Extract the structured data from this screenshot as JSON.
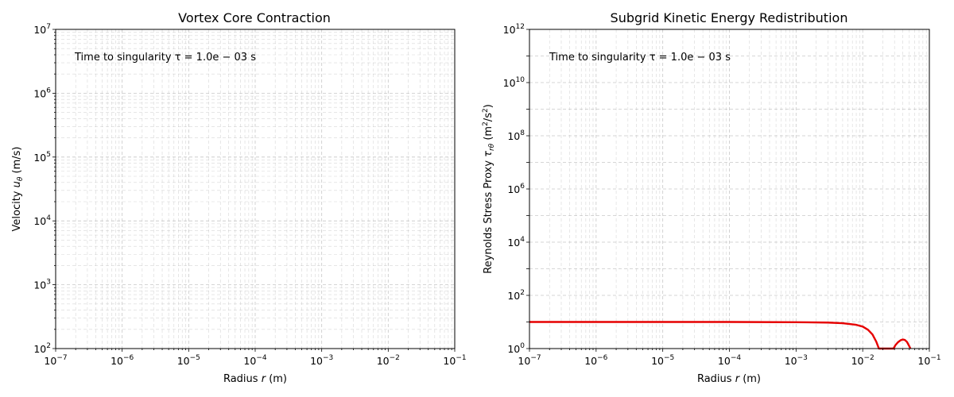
{
  "chart_data": [
    {
      "type": "line",
      "title": "Vortex Core Contraction",
      "xlabel": "Radius r (m)",
      "ylabel": "Velocity uθ (m/s)",
      "xscale": "log",
      "yscale": "log",
      "xlim": [
        1e-07,
        0.1
      ],
      "ylim": [
        100,
        10000000
      ],
      "grid": true,
      "annotation": "Time to singularity τ = 1.0e − 03 s",
      "series": []
    },
    {
      "type": "line",
      "title": "Subgrid Kinetic Energy Redistribution",
      "xlabel": "Radius r (m)",
      "ylabel": "Reynolds Stress Proxy τrθ (m²/s²)",
      "xscale": "log",
      "yscale": "log",
      "xlim": [
        1e-07,
        0.1
      ],
      "ylim": [
        1,
        1000000000000
      ],
      "grid": true,
      "annotation": "Time to singularity τ = 1.0e − 03 s",
      "series": [
        {
          "color": "#e60000",
          "x": [
            1e-07,
            1e-06,
            1e-05,
            0.0001,
            0.001,
            0.003,
            0.005,
            0.008,
            0.01,
            0.012,
            0.014,
            0.016,
            0.0175,
            0.029,
            0.031,
            0.034,
            0.037,
            0.04,
            0.043,
            0.046,
            0.049,
            0.052
          ],
          "y": [
            10,
            10,
            10,
            10,
            9.8,
            9.5,
            9.0,
            7.8,
            6.7,
            5.1,
            3.4,
            1.8,
            1.0,
            1.0,
            1.35,
            1.75,
            2.05,
            2.2,
            2.1,
            1.8,
            1.35,
            1.0
          ]
        }
      ]
    }
  ]
}
